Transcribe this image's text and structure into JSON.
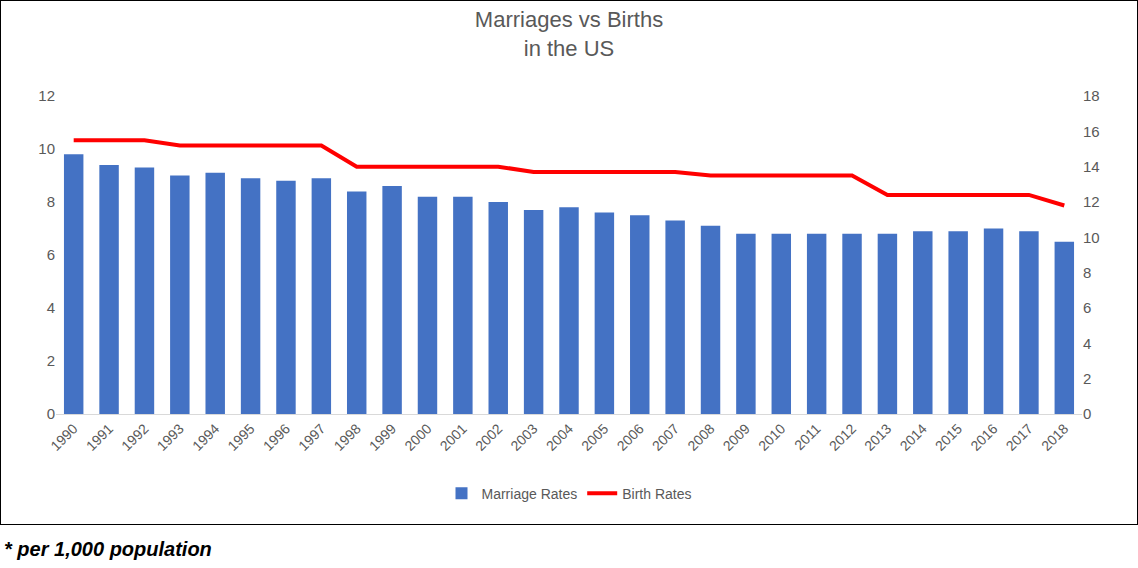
{
  "chart_data": {
    "type": "bar",
    "title": "Marriages vs Births\nin the US",
    "categories": [
      "1990",
      "1991",
      "1992",
      "1993",
      "1994",
      "1995",
      "1996",
      "1997",
      "1998",
      "1999",
      "2000",
      "2001",
      "2002",
      "2003",
      "2004",
      "2005",
      "2006",
      "2007",
      "2008",
      "2009",
      "2010",
      "2011",
      "2012",
      "2013",
      "2014",
      "2015",
      "2016",
      "2017",
      "2018"
    ],
    "series": [
      {
        "name": "Marriage Rates",
        "type": "bar",
        "color": "#4472c4",
        "values": [
          9.8,
          9.4,
          9.3,
          9.0,
          9.1,
          8.9,
          8.8,
          8.9,
          8.4,
          8.6,
          8.2,
          8.2,
          8.0,
          7.7,
          7.8,
          7.6,
          7.5,
          7.3,
          7.1,
          6.8,
          6.8,
          6.8,
          6.8,
          6.8,
          6.9,
          6.9,
          7.0,
          6.9,
          6.5
        ]
      },
      {
        "name": "Birth Rates",
        "type": "line",
        "color": "#ff0000",
        "axis": "y2",
        "values": [
          15.5,
          15.5,
          15.5,
          15.2,
          15.2,
          15.2,
          15.2,
          15.2,
          14.0,
          14.0,
          14.0,
          14.0,
          14.0,
          13.7,
          13.7,
          13.7,
          13.7,
          13.7,
          13.5,
          13.5,
          13.5,
          13.5,
          13.5,
          12.4,
          12.4,
          12.4,
          12.4,
          12.4,
          11.8
        ]
      }
    ],
    "ylim": [
      0,
      12
    ],
    "yticks": [
      0,
      2,
      4,
      6,
      8,
      10,
      12
    ],
    "y2lim": [
      0,
      18
    ],
    "y2ticks": [
      0,
      2,
      4,
      6,
      8,
      10,
      12,
      14,
      16,
      18
    ],
    "grid": false,
    "legend": "bottom",
    "annotations": [
      "* per 1,000 population"
    ]
  }
}
